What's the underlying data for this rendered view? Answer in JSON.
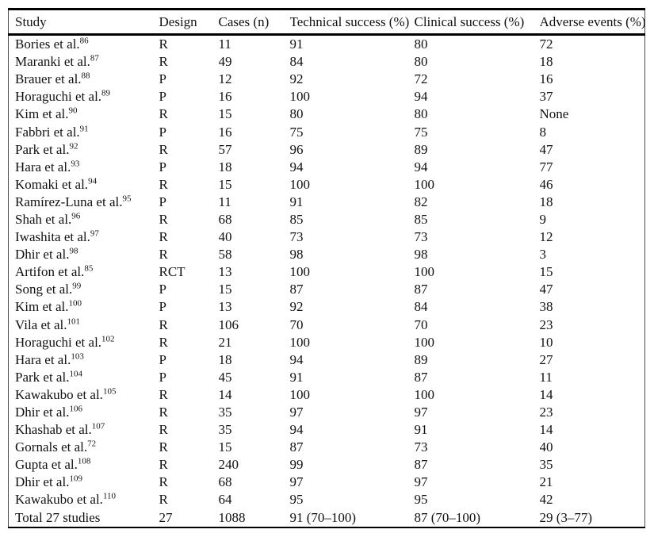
{
  "table": {
    "columns": [
      "Study",
      "Design",
      "Cases (n)",
      "Technical success (%)",
      "Clinical success (%)",
      "Adverse events (%)"
    ],
    "rows": [
      {
        "study": "Bories et al.",
        "ref": "86",
        "design": "R",
        "cases": "11",
        "technical": "91",
        "clinical": "80",
        "adverse": "72"
      },
      {
        "study": "Maranki et al.",
        "ref": "87",
        "design": "R",
        "cases": "49",
        "technical": "84",
        "clinical": "80",
        "adverse": "18"
      },
      {
        "study": "Brauer et al.",
        "ref": "88",
        "design": "P",
        "cases": "12",
        "technical": "92",
        "clinical": "72",
        "adverse": "16"
      },
      {
        "study": "Horaguchi et al.",
        "ref": "89",
        "design": "P",
        "cases": "16",
        "technical": "100",
        "clinical": "94",
        "adverse": "37"
      },
      {
        "study": "Kim et al.",
        "ref": "90",
        "design": "R",
        "cases": "15",
        "technical": "80",
        "clinical": "80",
        "adverse": "None"
      },
      {
        "study": "Fabbri et al.",
        "ref": "91",
        "design": "P",
        "cases": "16",
        "technical": "75",
        "clinical": "75",
        "adverse": "8"
      },
      {
        "study": "Park et al.",
        "ref": "92",
        "design": "R",
        "cases": "57",
        "technical": "96",
        "clinical": "89",
        "adverse": "47"
      },
      {
        "study": "Hara et al.",
        "ref": "93",
        "design": "P",
        "cases": "18",
        "technical": "94",
        "clinical": "94",
        "adverse": "77"
      },
      {
        "study": "Komaki et al.",
        "ref": "94",
        "design": "R",
        "cases": "15",
        "technical": "100",
        "clinical": "100",
        "adverse": "46"
      },
      {
        "study": "Ramírez-Luna et al.",
        "ref": "95",
        "design": "P",
        "cases": "11",
        "technical": "91",
        "clinical": "82",
        "adverse": "18"
      },
      {
        "study": "Shah et al.",
        "ref": "96",
        "design": "R",
        "cases": "68",
        "technical": "85",
        "clinical": "85",
        "adverse": "9"
      },
      {
        "study": "Iwashita et al.",
        "ref": "97",
        "design": "R",
        "cases": "40",
        "technical": "73",
        "clinical": "73",
        "adverse": "12"
      },
      {
        "study": "Dhir et al.",
        "ref": "98",
        "design": "R",
        "cases": "58",
        "technical": "98",
        "clinical": "98",
        "adverse": "3"
      },
      {
        "study": "Artifon et al.",
        "ref": "85",
        "design": "RCT",
        "cases": "13",
        "technical": "100",
        "clinical": "100",
        "adverse": "15"
      },
      {
        "study": "Song et al.",
        "ref": "99",
        "design": "P",
        "cases": "15",
        "technical": "87",
        "clinical": "87",
        "adverse": "47"
      },
      {
        "study": "Kim et al.",
        "ref": "100",
        "design": "P",
        "cases": "13",
        "technical": "92",
        "clinical": "84",
        "adverse": "38"
      },
      {
        "study": "Vila et al.",
        "ref": "101",
        "design": "R",
        "cases": "106",
        "technical": "70",
        "clinical": "70",
        "adverse": "23"
      },
      {
        "study": "Horaguchi et al.",
        "ref": "102",
        "design": "R",
        "cases": "21",
        "technical": "100",
        "clinical": "100",
        "adverse": "10"
      },
      {
        "study": "Hara et al.",
        "ref": "103",
        "design": "P",
        "cases": "18",
        "technical": "94",
        "clinical": "89",
        "adverse": "27"
      },
      {
        "study": "Park et al.",
        "ref": "104",
        "design": "P",
        "cases": "45",
        "technical": "91",
        "clinical": "87",
        "adverse": "11"
      },
      {
        "study": "Kawakubo et al.",
        "ref": "105",
        "design": "R",
        "cases": "14",
        "technical": "100",
        "clinical": "100",
        "adverse": "14"
      },
      {
        "study": "Dhir et al.",
        "ref": "106",
        "design": "R",
        "cases": "35",
        "technical": "97",
        "clinical": "97",
        "adverse": "23"
      },
      {
        "study": "Khashab et al.",
        "ref": "107",
        "design": "R",
        "cases": "35",
        "technical": "94",
        "clinical": "91",
        "adverse": "14"
      },
      {
        "study": "Gornals et al.",
        "ref": "72",
        "design": "R",
        "cases": "15",
        "technical": "87",
        "clinical": "73",
        "adverse": "40"
      },
      {
        "study": "Gupta et al.",
        "ref": "108",
        "design": "R",
        "cases": "240",
        "technical": "99",
        "clinical": "87",
        "adverse": "35"
      },
      {
        "study": "Dhir et al.",
        "ref": "109",
        "design": "R",
        "cases": "68",
        "technical": "97",
        "clinical": "97",
        "adverse": "21"
      },
      {
        "study": "Kawakubo et al.",
        "ref": "110",
        "design": "R",
        "cases": "64",
        "technical": "95",
        "clinical": "95",
        "adverse": "42"
      },
      {
        "study": "Total 27 studies",
        "ref": "",
        "design": "27",
        "cases": "1088",
        "technical": "91 (70–100)",
        "clinical": "87 (70–100)",
        "adverse": "29 (3–77)"
      }
    ]
  }
}
